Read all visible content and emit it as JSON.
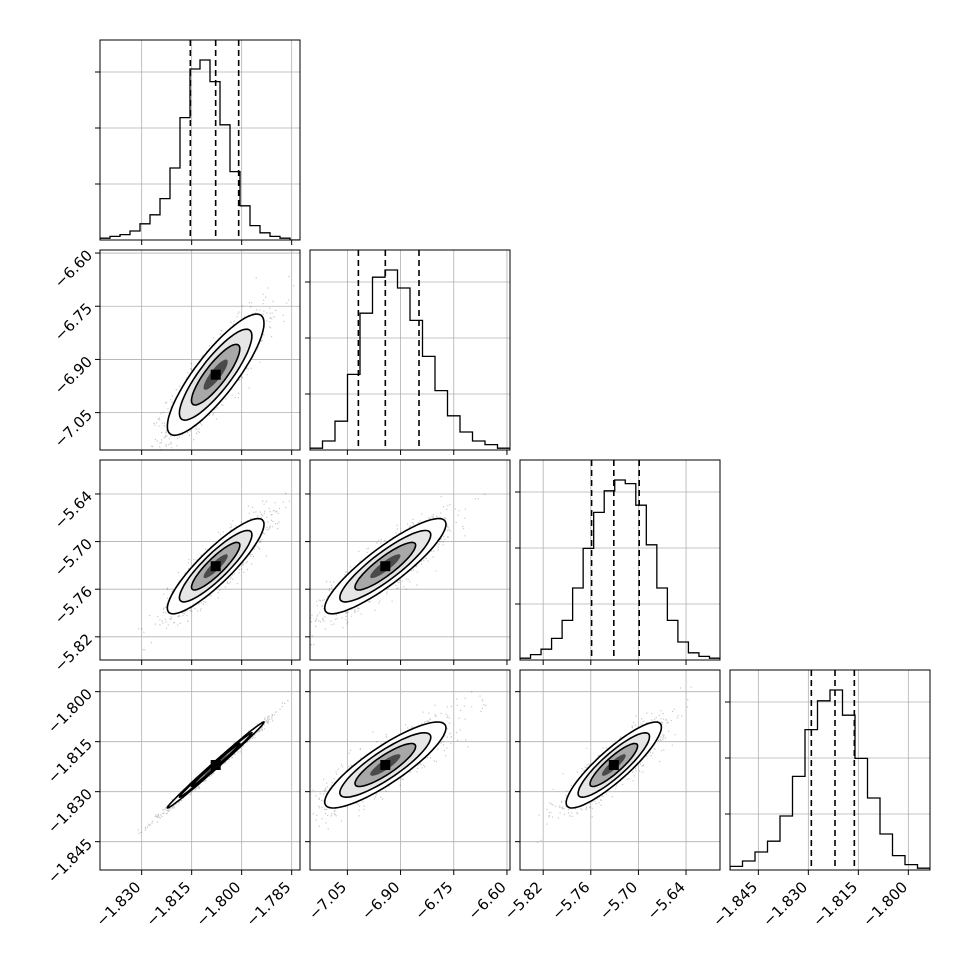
{
  "chart_data": {
    "type": "corner",
    "title": "",
    "parameters": [
      {
        "name": "",
        "range": [
          -1.8425,
          -1.7825
        ],
        "ticks": [
          -1.83,
          -1.815,
          -1.8,
          -1.785
        ],
        "tick_labels": [
          "−1.830",
          "−1.815",
          "−1.800",
          "−1.785"
        ],
        "quantiles": [
          -1.8154,
          -1.8078,
          -1.8009
        ]
      },
      {
        "name": "",
        "range": [
          -7.1554,
          -6.5914
        ],
        "ticks": [
          -7.05,
          -6.9,
          -6.75,
          -6.6
        ],
        "tick_labels": [
          "−7.05",
          "−6.90",
          "−6.75",
          "−6.60"
        ],
        "quantiles": [
          -7.019,
          -6.943,
          -6.848
        ]
      },
      {
        "name": "",
        "range": [
          -5.8492,
          -5.5972
        ],
        "ticks": [
          -5.82,
          -5.76,
          -5.7,
          -5.64
        ],
        "tick_labels": [
          "−5.82",
          "−5.76",
          "−5.70",
          "−5.64"
        ],
        "quantiles": [
          -5.759,
          -5.731,
          -5.699
        ]
      },
      {
        "name": "",
        "range": [
          -1.8535,
          -1.7935
        ],
        "ticks": [
          -1.845,
          -1.83,
          -1.815,
          -1.8
        ],
        "tick_labels": [
          "−1.845",
          "−1.830",
          "−1.815",
          "−1.800"
        ],
        "quantiles": [
          -1.8291,
          -1.822,
          -1.8162
        ]
      }
    ],
    "histograms": [
      [
        1,
        2,
        3,
        5,
        9,
        14,
        23,
        40,
        68,
        95,
        100,
        88,
        64,
        38,
        19,
        8,
        4,
        2,
        1,
        0
      ],
      [
        1,
        5,
        16,
        42,
        76,
        96,
        100,
        90,
        72,
        52,
        33,
        19,
        10,
        5,
        3,
        1
      ],
      [
        1,
        3,
        6,
        12,
        22,
        40,
        62,
        82,
        94,
        100,
        98,
        86,
        64,
        40,
        22,
        10,
        4,
        2,
        1
      ],
      [
        2,
        5,
        10,
        16,
        30,
        52,
        78,
        94,
        100,
        86,
        62,
        40,
        20,
        8,
        3,
        1
      ]
    ],
    "correlations": [
      [
        1.0,
        0.85,
        0.88,
        0.995
      ],
      [
        0.85,
        1.0,
        0.88,
        0.86
      ],
      [
        0.88,
        0.88,
        1.0,
        0.88
      ],
      [
        0.995,
        0.86,
        0.88,
        1.0
      ]
    ],
    "contour_levels": [
      "0.5 sigma",
      "1 sigma",
      "1.5 sigma",
      "2 sigma"
    ],
    "grid": true,
    "legend": "none"
  }
}
